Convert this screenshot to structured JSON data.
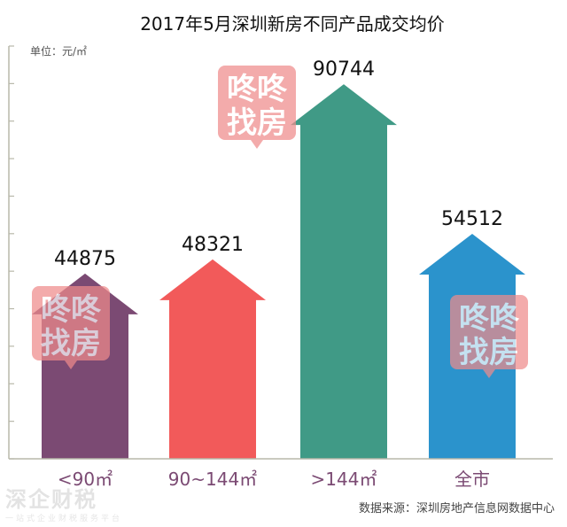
{
  "chart_data": {
    "type": "bar",
    "title": "2017年5月深圳新房不同产品成交均价",
    "unit_label": "单位：元/㎡",
    "categories": [
      "<90㎡",
      "90~144㎡",
      ">144㎡",
      "全市"
    ],
    "values": [
      44875,
      48321,
      90744,
      54512
    ],
    "bar_colors": [
      "#7b4a73",
      "#f25a5a",
      "#409a86",
      "#2b93cc"
    ],
    "category_label_colors": [
      "#7b4a73",
      "#7b4a73",
      "#7b4a73",
      "#7b4a73"
    ],
    "ylim": [
      0,
      100000
    ],
    "grid": false,
    "source": "数据来源：深圳房地产信息网数据中心"
  },
  "watermark": {
    "line1": "咚咚",
    "line2": "找房",
    "color": "#ef8b8b"
  },
  "footer_logo": {
    "name": "深企财税",
    "tagline": "一站式企业财税服务平台"
  }
}
